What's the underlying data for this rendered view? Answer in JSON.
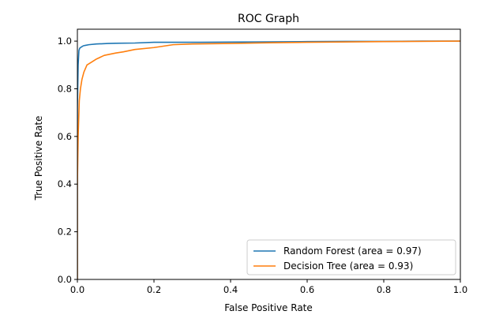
{
  "chart_data": {
    "type": "line",
    "title": "ROC Graph",
    "xlabel": "False Positive Rate",
    "ylabel": "True Positive Rate",
    "xlim": [
      0.0,
      1.0
    ],
    "ylim": [
      0.0,
      1.05
    ],
    "xticks": [
      "0.0",
      "0.2",
      "0.4",
      "0.6",
      "0.8",
      "1.0"
    ],
    "yticks": [
      "0.0",
      "0.2",
      "0.4",
      "0.6",
      "0.8",
      "1.0"
    ],
    "grid": false,
    "legend_position": "lower-right",
    "series": [
      {
        "name": "Random Forest (area = 0.97)",
        "color": "#1f77b4",
        "x": [
          0.0,
          0.0,
          0.002,
          0.004,
          0.006,
          0.01,
          0.015,
          0.02,
          0.03,
          0.05,
          0.08,
          0.1,
          0.15,
          0.2,
          0.3,
          0.4,
          0.5,
          0.6,
          0.7,
          0.8,
          0.9,
          1.0
        ],
        "y": [
          0.0,
          0.72,
          0.9,
          0.96,
          0.97,
          0.975,
          0.98,
          0.982,
          0.985,
          0.988,
          0.99,
          0.991,
          0.992,
          0.995,
          0.995,
          0.996,
          0.997,
          0.998,
          0.999,
          0.999,
          1.0,
          1.0
        ]
      },
      {
        "name": "Decision Tree (area = 0.93)",
        "color": "#ff7f0e",
        "x": [
          0.0,
          0.0,
          0.002,
          0.005,
          0.008,
          0.012,
          0.017,
          0.025,
          0.035,
          0.05,
          0.07,
          0.1,
          0.12,
          0.15,
          0.2,
          0.25,
          0.3,
          0.4,
          0.5,
          0.6,
          0.8,
          1.0
        ],
        "y": [
          0.0,
          0.4,
          0.6,
          0.75,
          0.8,
          0.84,
          0.87,
          0.9,
          0.91,
          0.925,
          0.94,
          0.95,
          0.955,
          0.965,
          0.973,
          0.985,
          0.988,
          0.99,
          0.993,
          0.995,
          0.998,
          1.0
        ]
      }
    ]
  }
}
